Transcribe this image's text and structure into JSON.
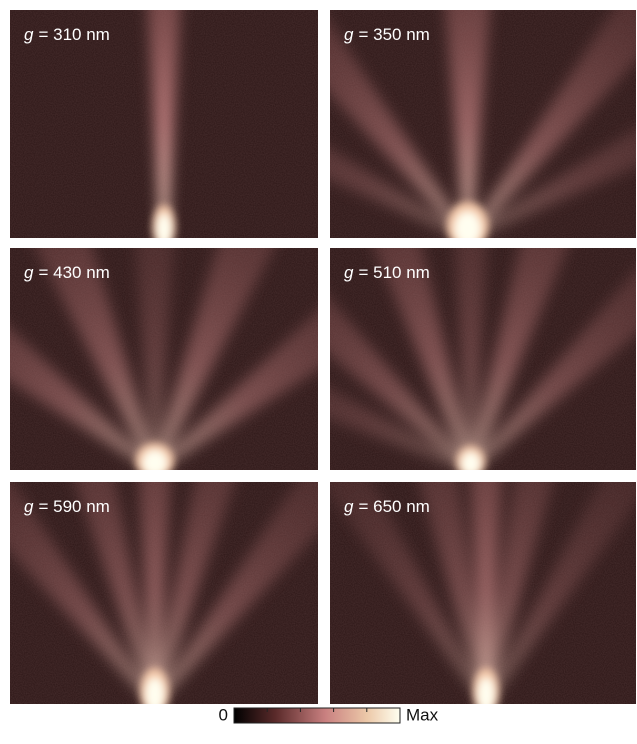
{
  "panels": [
    {
      "variable": "g",
      "text": "= 310 nm"
    },
    {
      "variable": "g",
      "text": "= 350 nm"
    },
    {
      "variable": "g",
      "text": "= 430 nm"
    },
    {
      "variable": "g",
      "text": "= 510 nm"
    },
    {
      "variable": "g",
      "text": "= 590 nm"
    },
    {
      "variable": "g",
      "text": "= 650 nm"
    }
  ],
  "colorbar": {
    "min_label": "0",
    "max_label": "Max"
  }
}
